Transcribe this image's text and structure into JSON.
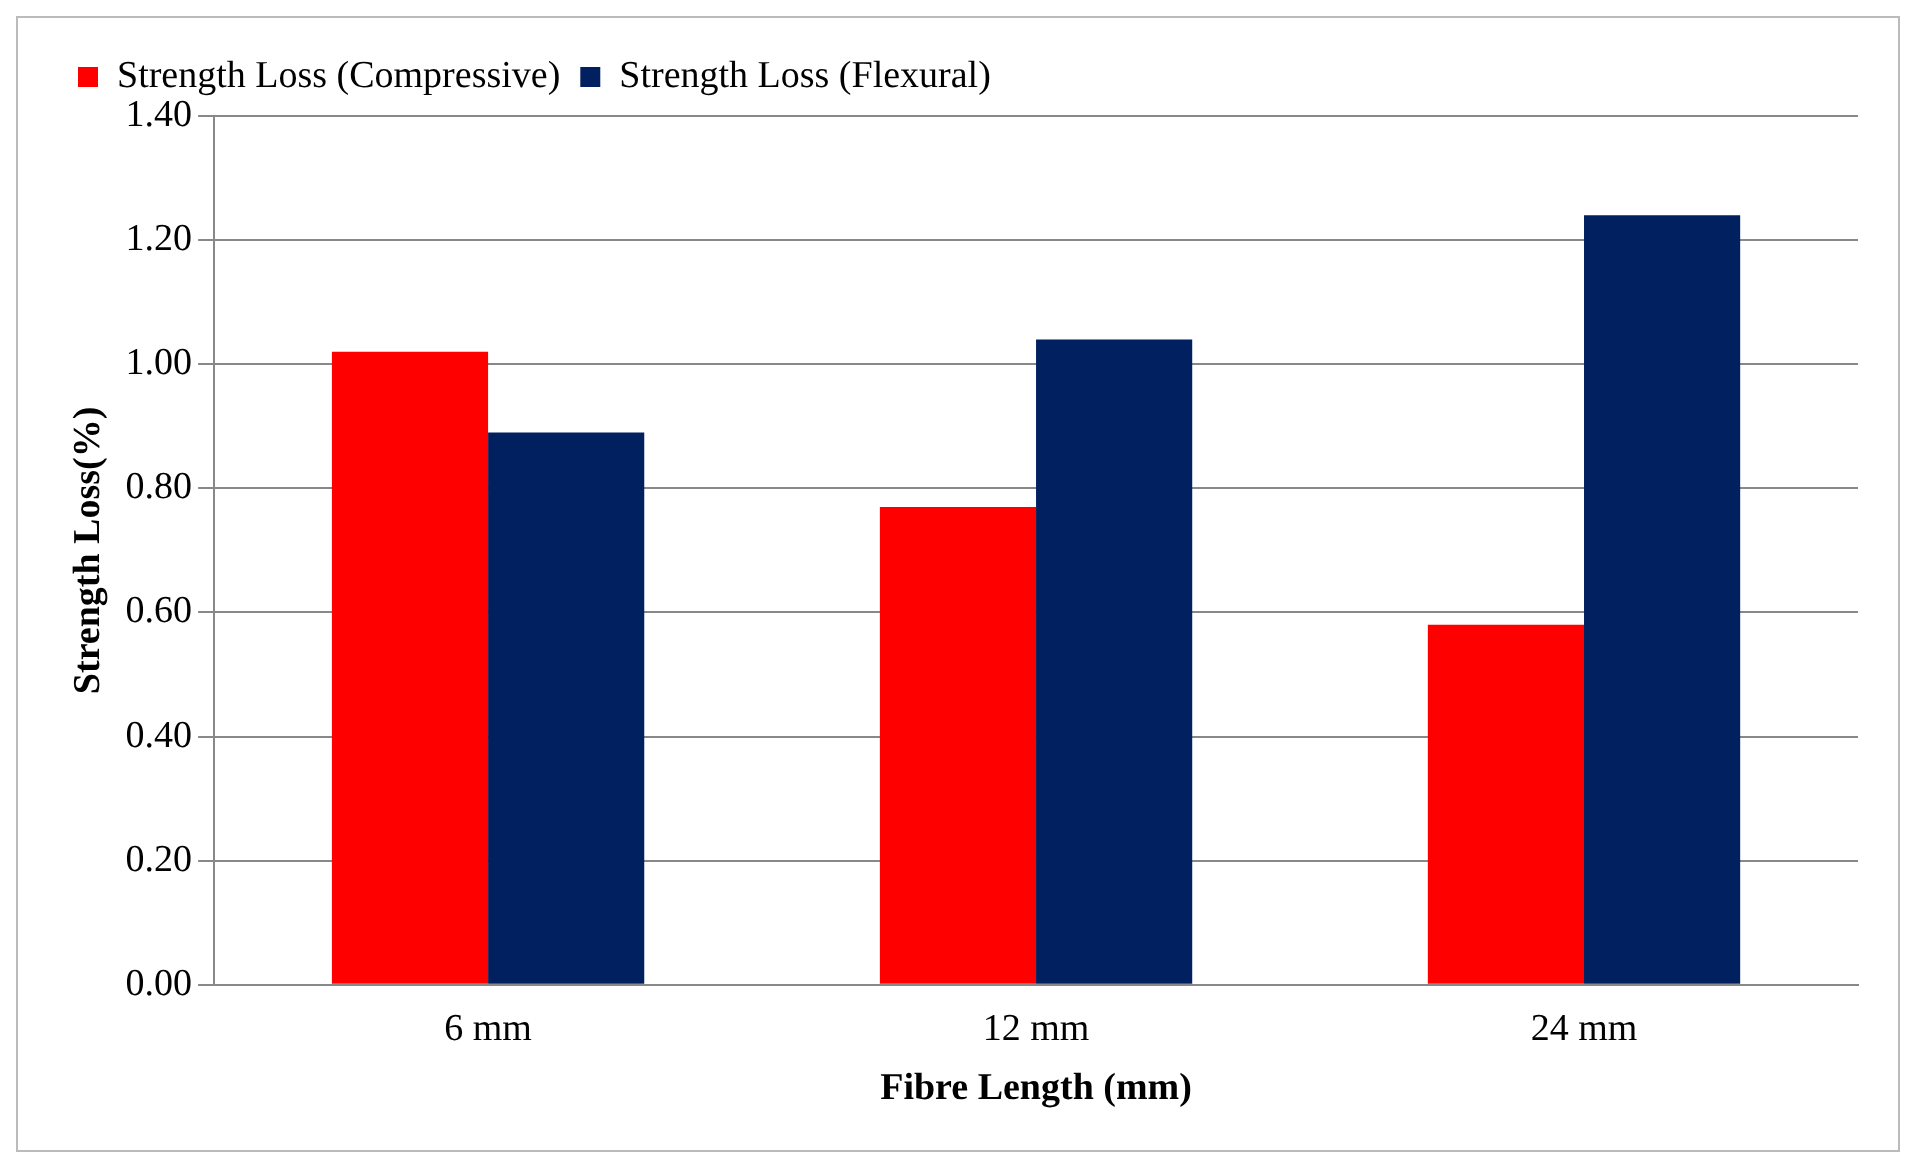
{
  "chart_data": {
    "type": "bar",
    "xlabel": "Fibre Length (mm)",
    "ylabel": "Strength Loss(%)",
    "categories": [
      "6 mm",
      "12 mm",
      "24 mm"
    ],
    "series": [
      {
        "name": "Strength Loss (Compressive)",
        "color": "#ff0000",
        "values": [
          1.02,
          0.77,
          0.58
        ]
      },
      {
        "name": "Strength Loss (Flexural)",
        "color": "#002060",
        "values": [
          0.89,
          1.04,
          1.24
        ]
      }
    ],
    "ylim": [
      0,
      1.4
    ],
    "yticks": [
      {
        "value": 0,
        "label": "0.00"
      },
      {
        "value": 0.2,
        "label": "0.20"
      },
      {
        "value": 0.4,
        "label": "0.40"
      },
      {
        "value": 0.6,
        "label": "0.60"
      },
      {
        "value": 0.8,
        "label": "0.80"
      },
      {
        "value": 1.0,
        "label": "1.00"
      },
      {
        "value": 1.2,
        "label": "1.20"
      },
      {
        "value": 1.4,
        "label": "1.40"
      }
    ],
    "grid": "y",
    "legend": "top"
  }
}
